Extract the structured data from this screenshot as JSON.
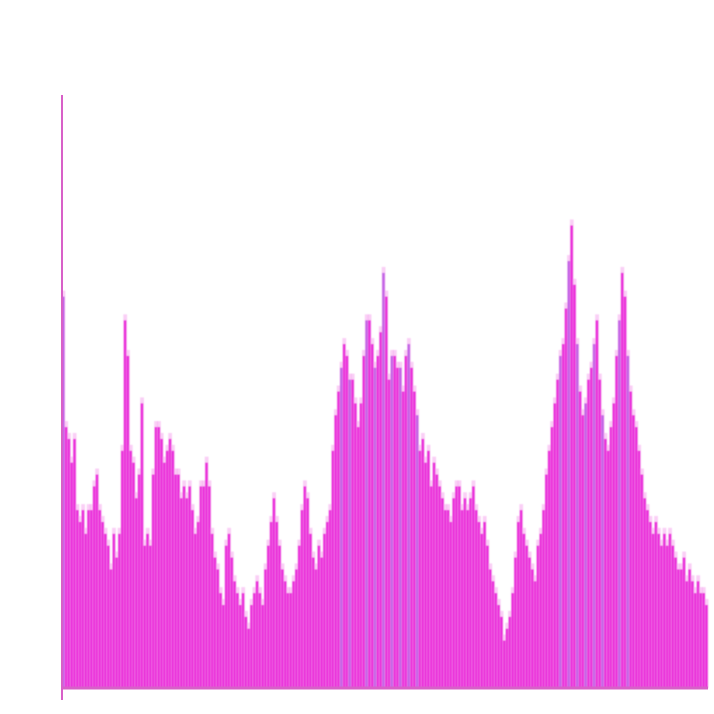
{
  "chart_data": {
    "type": "bar",
    "title": "",
    "xlabel": "",
    "ylabel": "",
    "grid": false,
    "ylim": [
      0,
      1
    ],
    "colors": {
      "bar_main": "#e81fd8",
      "bar_light": "#f6a8ee",
      "bar_violet": "#b040e0",
      "axis": "#d860c8"
    },
    "values": [
      0.66,
      0.44,
      0.42,
      0.38,
      0.42,
      0.3,
      0.28,
      0.3,
      0.26,
      0.3,
      0.3,
      0.34,
      0.36,
      0.3,
      0.28,
      0.26,
      0.24,
      0.2,
      0.26,
      0.22,
      0.26,
      0.4,
      0.62,
      0.56,
      0.4,
      0.38,
      0.32,
      0.36,
      0.48,
      0.24,
      0.26,
      0.24,
      0.36,
      0.44,
      0.44,
      0.42,
      0.38,
      0.4,
      0.42,
      0.4,
      0.36,
      0.36,
      0.32,
      0.34,
      0.32,
      0.34,
      0.3,
      0.26,
      0.28,
      0.34,
      0.34,
      0.38,
      0.34,
      0.26,
      0.22,
      0.2,
      0.16,
      0.14,
      0.24,
      0.26,
      0.22,
      0.18,
      0.16,
      0.14,
      0.16,
      0.12,
      0.1,
      0.14,
      0.16,
      0.18,
      0.16,
      0.14,
      0.2,
      0.24,
      0.28,
      0.32,
      0.28,
      0.24,
      0.2,
      0.18,
      0.16,
      0.16,
      0.18,
      0.2,
      0.24,
      0.3,
      0.34,
      0.32,
      0.26,
      0.22,
      0.2,
      0.24,
      0.22,
      0.26,
      0.28,
      0.3,
      0.4,
      0.46,
      0.5,
      0.54,
      0.58,
      0.56,
      0.52,
      0.52,
      0.48,
      0.44,
      0.48,
      0.56,
      0.62,
      0.62,
      0.58,
      0.54,
      0.56,
      0.6,
      0.7,
      0.66,
      0.52,
      0.56,
      0.56,
      0.54,
      0.54,
      0.5,
      0.56,
      0.58,
      0.54,
      0.5,
      0.46,
      0.4,
      0.42,
      0.38,
      0.4,
      0.34,
      0.38,
      0.36,
      0.34,
      0.32,
      0.3,
      0.3,
      0.28,
      0.32,
      0.34,
      0.34,
      0.3,
      0.32,
      0.3,
      0.32,
      0.34,
      0.3,
      0.28,
      0.26,
      0.28,
      0.24,
      0.2,
      0.18,
      0.16,
      0.14,
      0.12,
      0.08,
      0.1,
      0.12,
      0.16,
      0.22,
      0.28,
      0.3,
      0.26,
      0.24,
      0.22,
      0.2,
      0.18,
      0.24,
      0.26,
      0.3,
      0.36,
      0.4,
      0.44,
      0.48,
      0.52,
      0.56,
      0.58,
      0.64,
      0.72,
      0.78,
      0.68,
      0.58,
      0.5,
      0.46,
      0.48,
      0.52,
      0.54,
      0.58,
      0.62,
      0.52,
      0.46,
      0.42,
      0.4,
      0.44,
      0.48,
      0.56,
      0.62,
      0.7,
      0.66,
      0.56,
      0.5,
      0.46,
      0.44,
      0.4,
      0.36,
      0.32,
      0.3,
      0.28,
      0.26,
      0.28,
      0.26,
      0.24,
      0.26,
      0.24,
      0.26,
      0.24,
      0.22,
      0.2,
      0.2,
      0.22,
      0.18,
      0.2,
      0.18,
      0.16,
      0.18,
      0.16,
      0.16,
      0.14
    ]
  }
}
